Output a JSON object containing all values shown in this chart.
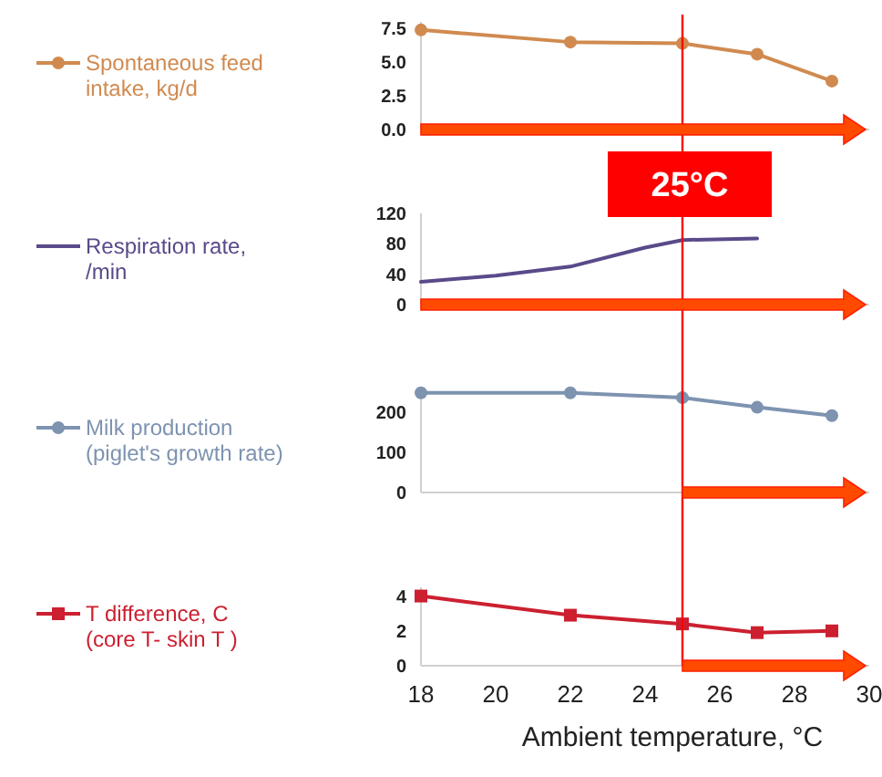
{
  "chart_data": [
    {
      "type": "line",
      "x": [
        18,
        22,
        25,
        27,
        29
      ],
      "series": [
        {
          "name": "Spontaneous feed intake, kg/d",
          "color": "#d08a50",
          "values": [
            7.4,
            6.5,
            6.4,
            5.6,
            3.6
          ]
        }
      ],
      "xlim": [
        18,
        30
      ],
      "ylim": [
        0,
        8
      ],
      "yticks": [
        {
          "value": 0,
          "label": "0.0"
        },
        {
          "value": 2.5,
          "label": "2.5"
        },
        {
          "value": 5,
          "label": "5.0"
        },
        {
          "value": 7.5,
          "label": "7.5"
        }
      ],
      "tick_labels": "y",
      "marker": "circle",
      "legend": "left",
      "ref_lines": [
        {
          "axis": "x",
          "value": 25,
          "label": "25°C",
          "color": "#ff0000"
        }
      ]
    },
    {
      "type": "line",
      "x": [
        18,
        20,
        22,
        24,
        25,
        27
      ],
      "series": [
        {
          "name": "Respiration rate, /min",
          "color": "#5a4a8a",
          "values": [
            30,
            38,
            50,
            75,
            85,
            87
          ]
        }
      ],
      "xlim": [
        18,
        30
      ],
      "ylim": [
        0,
        120
      ],
      "yticks": [
        0,
        40,
        80,
        120
      ],
      "tick_labels": "y",
      "marker": "none",
      "legend": "left",
      "ref_lines": [
        {
          "axis": "x",
          "value": 25,
          "color": "#ff0000"
        }
      ]
    },
    {
      "type": "line",
      "x": [
        18,
        22,
        25,
        27,
        29
      ],
      "series": [
        {
          "name": "Milk production (piglet's growth rate)",
          "color": "#7d93b0",
          "values": [
            249,
            249,
            237,
            213,
            192
          ]
        }
      ],
      "xlim": [
        18,
        30
      ],
      "ylim": [
        0,
        260
      ],
      "yticks": [
        0,
        100,
        200
      ],
      "tick_labels": "y",
      "marker": "circle",
      "legend": "left",
      "ref_lines": [
        {
          "axis": "x",
          "value": 25,
          "color": "#ff0000"
        }
      ]
    },
    {
      "type": "line",
      "x": [
        18,
        22,
        25,
        27,
        29
      ],
      "series": [
        {
          "name": "T difference, C (core T- skin T )",
          "color": "#cc2030",
          "values": [
            4,
            2.9,
            2.4,
            1.9,
            2.0
          ]
        }
      ],
      "xlim": [
        18,
        30
      ],
      "xticks": [
        18,
        20,
        22,
        24,
        26,
        28,
        30
      ],
      "ylim": [
        0,
        4.5
      ],
      "yticks": [
        0,
        2,
        4
      ],
      "xlabel": "Ambient temperature, °C",
      "marker": "square",
      "legend": "left",
      "ref_lines": [
        {
          "axis": "x",
          "value": 25,
          "color": "#ff0000"
        }
      ]
    }
  ]
}
